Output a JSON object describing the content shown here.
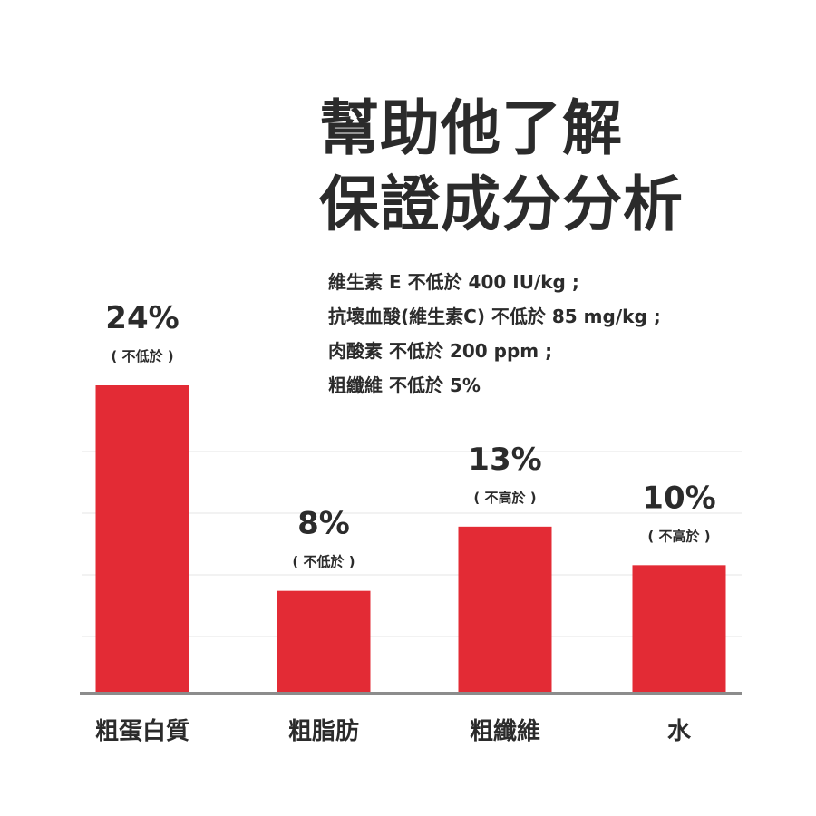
{
  "title": {
    "line1": "幫助他了解",
    "line2": "保證成分分析"
  },
  "notes": [
    "維生素 E 不低於 400 IU/kg ;",
    "抗壞血酸(維生素C) 不低於 85 mg/kg ;",
    "肉酸素 不低於 200 ppm ;",
    "粗纖維 不低於 5%"
  ],
  "colors": {
    "bar": "#e32b35",
    "axis": "#8c8c8c",
    "grid": "#ededed",
    "text": "#2b2b2b"
  },
  "chart_data": {
    "type": "bar",
    "categories": [
      "粗蛋白質",
      "粗脂肪",
      "粗纖維",
      "水"
    ],
    "values": [
      24,
      8,
      13,
      10
    ],
    "value_labels": [
      "24%",
      "8%",
      "13%",
      "10%"
    ],
    "qualifiers": [
      "( 不低於 )",
      "( 不低於 )",
      "( 不高於 )",
      "( 不高於 )"
    ],
    "unit": "%",
    "xlabel": "",
    "ylabel": "",
    "ylim": [
      0,
      24
    ],
    "grid": true,
    "legend": "none"
  }
}
